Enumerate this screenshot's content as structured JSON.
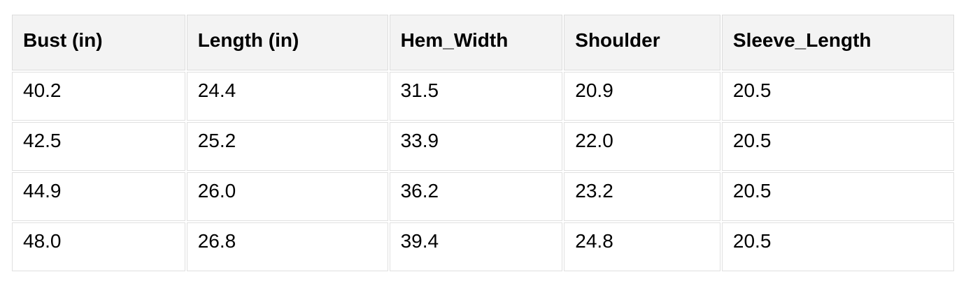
{
  "table": {
    "headers": [
      "Bust (in)",
      "Length (in)",
      "Hem_Width",
      "Shoulder",
      "Sleeve_Length"
    ],
    "rows": [
      [
        "40.2",
        "24.4",
        "31.5",
        "20.9",
        "20.5"
      ],
      [
        "42.5",
        "25.2",
        "33.9",
        "22.0",
        "20.5"
      ],
      [
        "44.9",
        "26.0",
        "36.2",
        "23.2",
        "20.5"
      ],
      [
        "48.0",
        "26.8",
        "39.4",
        "24.8",
        "20.5"
      ]
    ]
  },
  "colors": {
    "header_background": "#f3f3f3",
    "cell_background": "#ffffff",
    "border": "#dedede",
    "text": "#000000"
  }
}
